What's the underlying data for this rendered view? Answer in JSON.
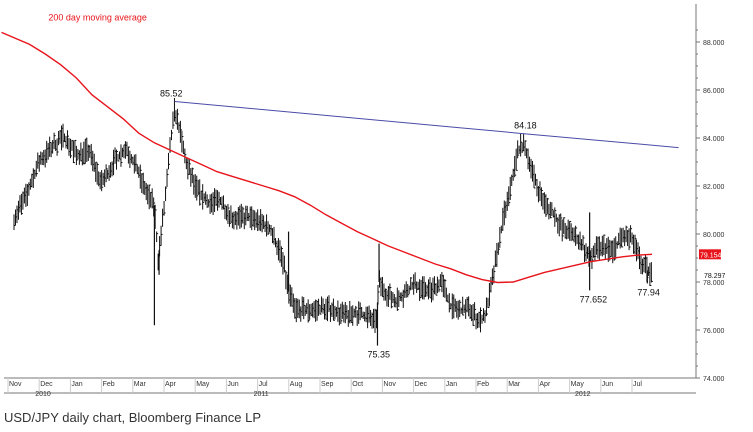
{
  "caption": "USD/JPY daily chart, Bloomberg Finance LP",
  "chart_data": {
    "type": "line",
    "style": "bar",
    "title": "",
    "xlabel": "",
    "ylabel": "",
    "ylim": [
      74.0,
      89.6
    ],
    "grid": false,
    "colors": {
      "price": "#111111",
      "moving_average": "#e8141b",
      "trendline": "#4a4aa8",
      "axis": "#777777",
      "last_price_box": "#e8141b"
    },
    "y_ticks": [
      "74.000",
      "76.000",
      "78.000",
      "80.000",
      "82.000",
      "84.000",
      "86.000",
      "88.000"
    ],
    "x_months": [
      "Nov",
      "Dec",
      "Jan",
      "Feb",
      "Mar",
      "Apr",
      "May",
      "Jun",
      "Jul",
      "Aug",
      "Sep",
      "Oct",
      "Nov",
      "Dec",
      "Jan",
      "Feb",
      "Mar",
      "Apr",
      "May",
      "Jun",
      "Jul"
    ],
    "x_years": [
      "2010",
      "2011",
      "2012"
    ],
    "price_anchors": [
      {
        "t": 0,
        "v": 80.7
      },
      {
        "t": 0.4,
        "v": 81.6
      },
      {
        "t": 0.8,
        "v": 83.0
      },
      {
        "t": 1.2,
        "v": 83.6
      },
      {
        "t": 1.6,
        "v": 84.1
      },
      {
        "t": 2.0,
        "v": 83.3
      },
      {
        "t": 2.4,
        "v": 83.5
      },
      {
        "t": 2.8,
        "v": 82.1
      },
      {
        "t": 3.2,
        "v": 83.0
      },
      {
        "t": 3.6,
        "v": 83.6
      },
      {
        "t": 4.0,
        "v": 82.5
      },
      {
        "t": 4.3,
        "v": 81.6
      },
      {
        "t": 4.5,
        "v": 81.2
      },
      {
        "t": 4.62,
        "v": 79.0
      },
      {
        "t": 4.85,
        "v": 81.5
      },
      {
        "t": 5.0,
        "v": 83.5
      },
      {
        "t": 5.15,
        "v": 85.2
      },
      {
        "t": 5.3,
        "v": 84.4
      },
      {
        "t": 5.5,
        "v": 83.0
      },
      {
        "t": 5.8,
        "v": 82.0
      },
      {
        "t": 6.2,
        "v": 81.3
      },
      {
        "t": 6.6,
        "v": 81.4
      },
      {
        "t": 7.0,
        "v": 80.7
      },
      {
        "t": 7.4,
        "v": 80.7
      },
      {
        "t": 7.8,
        "v": 80.6
      },
      {
        "t": 8.2,
        "v": 80.2
      },
      {
        "t": 8.6,
        "v": 79.0
      },
      {
        "t": 8.8,
        "v": 77.6
      },
      {
        "t": 9.0,
        "v": 76.9
      },
      {
        "t": 9.4,
        "v": 76.8
      },
      {
        "t": 9.8,
        "v": 76.9
      },
      {
        "t": 10.2,
        "v": 76.9
      },
      {
        "t": 10.6,
        "v": 76.6
      },
      {
        "t": 11.0,
        "v": 76.7
      },
      {
        "t": 11.4,
        "v": 76.5
      },
      {
        "t": 11.6,
        "v": 76.3
      },
      {
        "t": 11.7,
        "v": 78.0
      },
      {
        "t": 11.9,
        "v": 77.6
      },
      {
        "t": 12.2,
        "v": 77.2
      },
      {
        "t": 12.5,
        "v": 77.5
      },
      {
        "t": 12.8,
        "v": 77.9
      },
      {
        "t": 13.1,
        "v": 77.7
      },
      {
        "t": 13.4,
        "v": 77.7
      },
      {
        "t": 13.7,
        "v": 78.0
      },
      {
        "t": 14.0,
        "v": 77.0
      },
      {
        "t": 14.3,
        "v": 76.8
      },
      {
        "t": 14.6,
        "v": 76.9
      },
      {
        "t": 14.9,
        "v": 76.4
      },
      {
        "t": 15.1,
        "v": 76.6
      },
      {
        "t": 15.3,
        "v": 77.8
      },
      {
        "t": 15.5,
        "v": 79.3
      },
      {
        "t": 15.7,
        "v": 80.8
      },
      {
        "t": 15.85,
        "v": 81.5
      },
      {
        "t": 16.0,
        "v": 82.5
      },
      {
        "t": 16.15,
        "v": 83.5
      },
      {
        "t": 16.3,
        "v": 83.7
      },
      {
        "t": 16.5,
        "v": 83.2
      },
      {
        "t": 16.7,
        "v": 82.2
      },
      {
        "t": 17.0,
        "v": 81.3
      },
      {
        "t": 17.3,
        "v": 80.8
      },
      {
        "t": 17.6,
        "v": 80.2
      },
      {
        "t": 17.9,
        "v": 80.0
      },
      {
        "t": 18.2,
        "v": 79.6
      },
      {
        "t": 18.45,
        "v": 78.9
      },
      {
        "t": 18.6,
        "v": 79.3
      },
      {
        "t": 18.9,
        "v": 79.5
      },
      {
        "t": 19.2,
        "v": 79.3
      },
      {
        "t": 19.5,
        "v": 79.9
      },
      {
        "t": 19.8,
        "v": 79.8
      },
      {
        "t": 20.1,
        "v": 78.8
      },
      {
        "t": 20.35,
        "v": 78.4
      },
      {
        "t": 20.45,
        "v": 78.3
      }
    ],
    "price_spikes": [
      {
        "t": 4.5,
        "low": 76.2
      },
      {
        "t": 4.65,
        "low": 78.3
      },
      {
        "t": 11.65,
        "low": 75.35
      },
      {
        "t": 18.45,
        "high": 80.9,
        "low": 77.652
      },
      {
        "t": 20.3,
        "low": 77.94
      },
      {
        "t": 8.8,
        "high": 80.1
      },
      {
        "t": 11.7,
        "high": 79.6
      }
    ],
    "moving_average_200_day": [
      {
        "t": -0.4,
        "v": 88.4
      },
      {
        "t": 0.5,
        "v": 87.9
      },
      {
        "t": 1.0,
        "v": 87.5
      },
      {
        "t": 1.5,
        "v": 87.05
      },
      {
        "t": 2.0,
        "v": 86.5
      },
      {
        "t": 2.5,
        "v": 85.8
      },
      {
        "t": 3.0,
        "v": 85.3
      },
      {
        "t": 3.5,
        "v": 84.8
      },
      {
        "t": 4.0,
        "v": 84.2
      },
      {
        "t": 4.5,
        "v": 83.8
      },
      {
        "t": 5.0,
        "v": 83.5
      },
      {
        "t": 5.5,
        "v": 83.2
      },
      {
        "t": 6.0,
        "v": 82.9
      },
      {
        "t": 6.5,
        "v": 82.6
      },
      {
        "t": 7.0,
        "v": 82.4
      },
      {
        "t": 7.5,
        "v": 82.2
      },
      {
        "t": 8.0,
        "v": 82.0
      },
      {
        "t": 8.5,
        "v": 81.8
      },
      {
        "t": 9.0,
        "v": 81.55
      },
      {
        "t": 9.5,
        "v": 81.2
      },
      {
        "t": 10.0,
        "v": 80.8
      },
      {
        "t": 10.5,
        "v": 80.45
      },
      {
        "t": 11.0,
        "v": 80.1
      },
      {
        "t": 11.5,
        "v": 79.8
      },
      {
        "t": 12.0,
        "v": 79.5
      },
      {
        "t": 12.5,
        "v": 79.25
      },
      {
        "t": 13.0,
        "v": 79.0
      },
      {
        "t": 13.5,
        "v": 78.75
      },
      {
        "t": 14.0,
        "v": 78.55
      },
      {
        "t": 14.5,
        "v": 78.3
      },
      {
        "t": 15.0,
        "v": 78.1
      },
      {
        "t": 15.5,
        "v": 77.98
      },
      {
        "t": 16.0,
        "v": 78.0
      },
      {
        "t": 16.5,
        "v": 78.2
      },
      {
        "t": 17.0,
        "v": 78.4
      },
      {
        "t": 17.5,
        "v": 78.55
      },
      {
        "t": 18.0,
        "v": 78.7
      },
      {
        "t": 18.5,
        "v": 78.85
      },
      {
        "t": 19.0,
        "v": 78.95
      },
      {
        "t": 19.5,
        "v": 79.05
      },
      {
        "t": 20.0,
        "v": 79.12
      },
      {
        "t": 20.45,
        "v": 79.154
      }
    ],
    "trendline": [
      {
        "t": 5.15,
        "v": 85.52
      },
      {
        "t": 16.35,
        "v": 84.18
      },
      {
        "t": 21.3,
        "v": 83.6
      }
    ],
    "annotations": [
      {
        "text": "200 day moving average",
        "t": 1.1,
        "v": 88.9,
        "color": "#e8141b"
      },
      {
        "text": "85.52",
        "t": 5.0,
        "v": 85.52
      },
      {
        "text": "84.18",
        "t": 16.35,
        "v": 84.18
      },
      {
        "text": "75.35",
        "t": 11.65,
        "v": 75.35
      },
      {
        "text": "77.652",
        "t": 18.45,
        "v": 77.652
      },
      {
        "text": "77.94",
        "t": 20.3,
        "v": 77.94
      }
    ],
    "last_values": [
      {
        "label": "79.154",
        "v": 79.154,
        "boxed": true
      },
      {
        "label": "78.297",
        "v": 78.297,
        "boxed": false
      }
    ]
  }
}
